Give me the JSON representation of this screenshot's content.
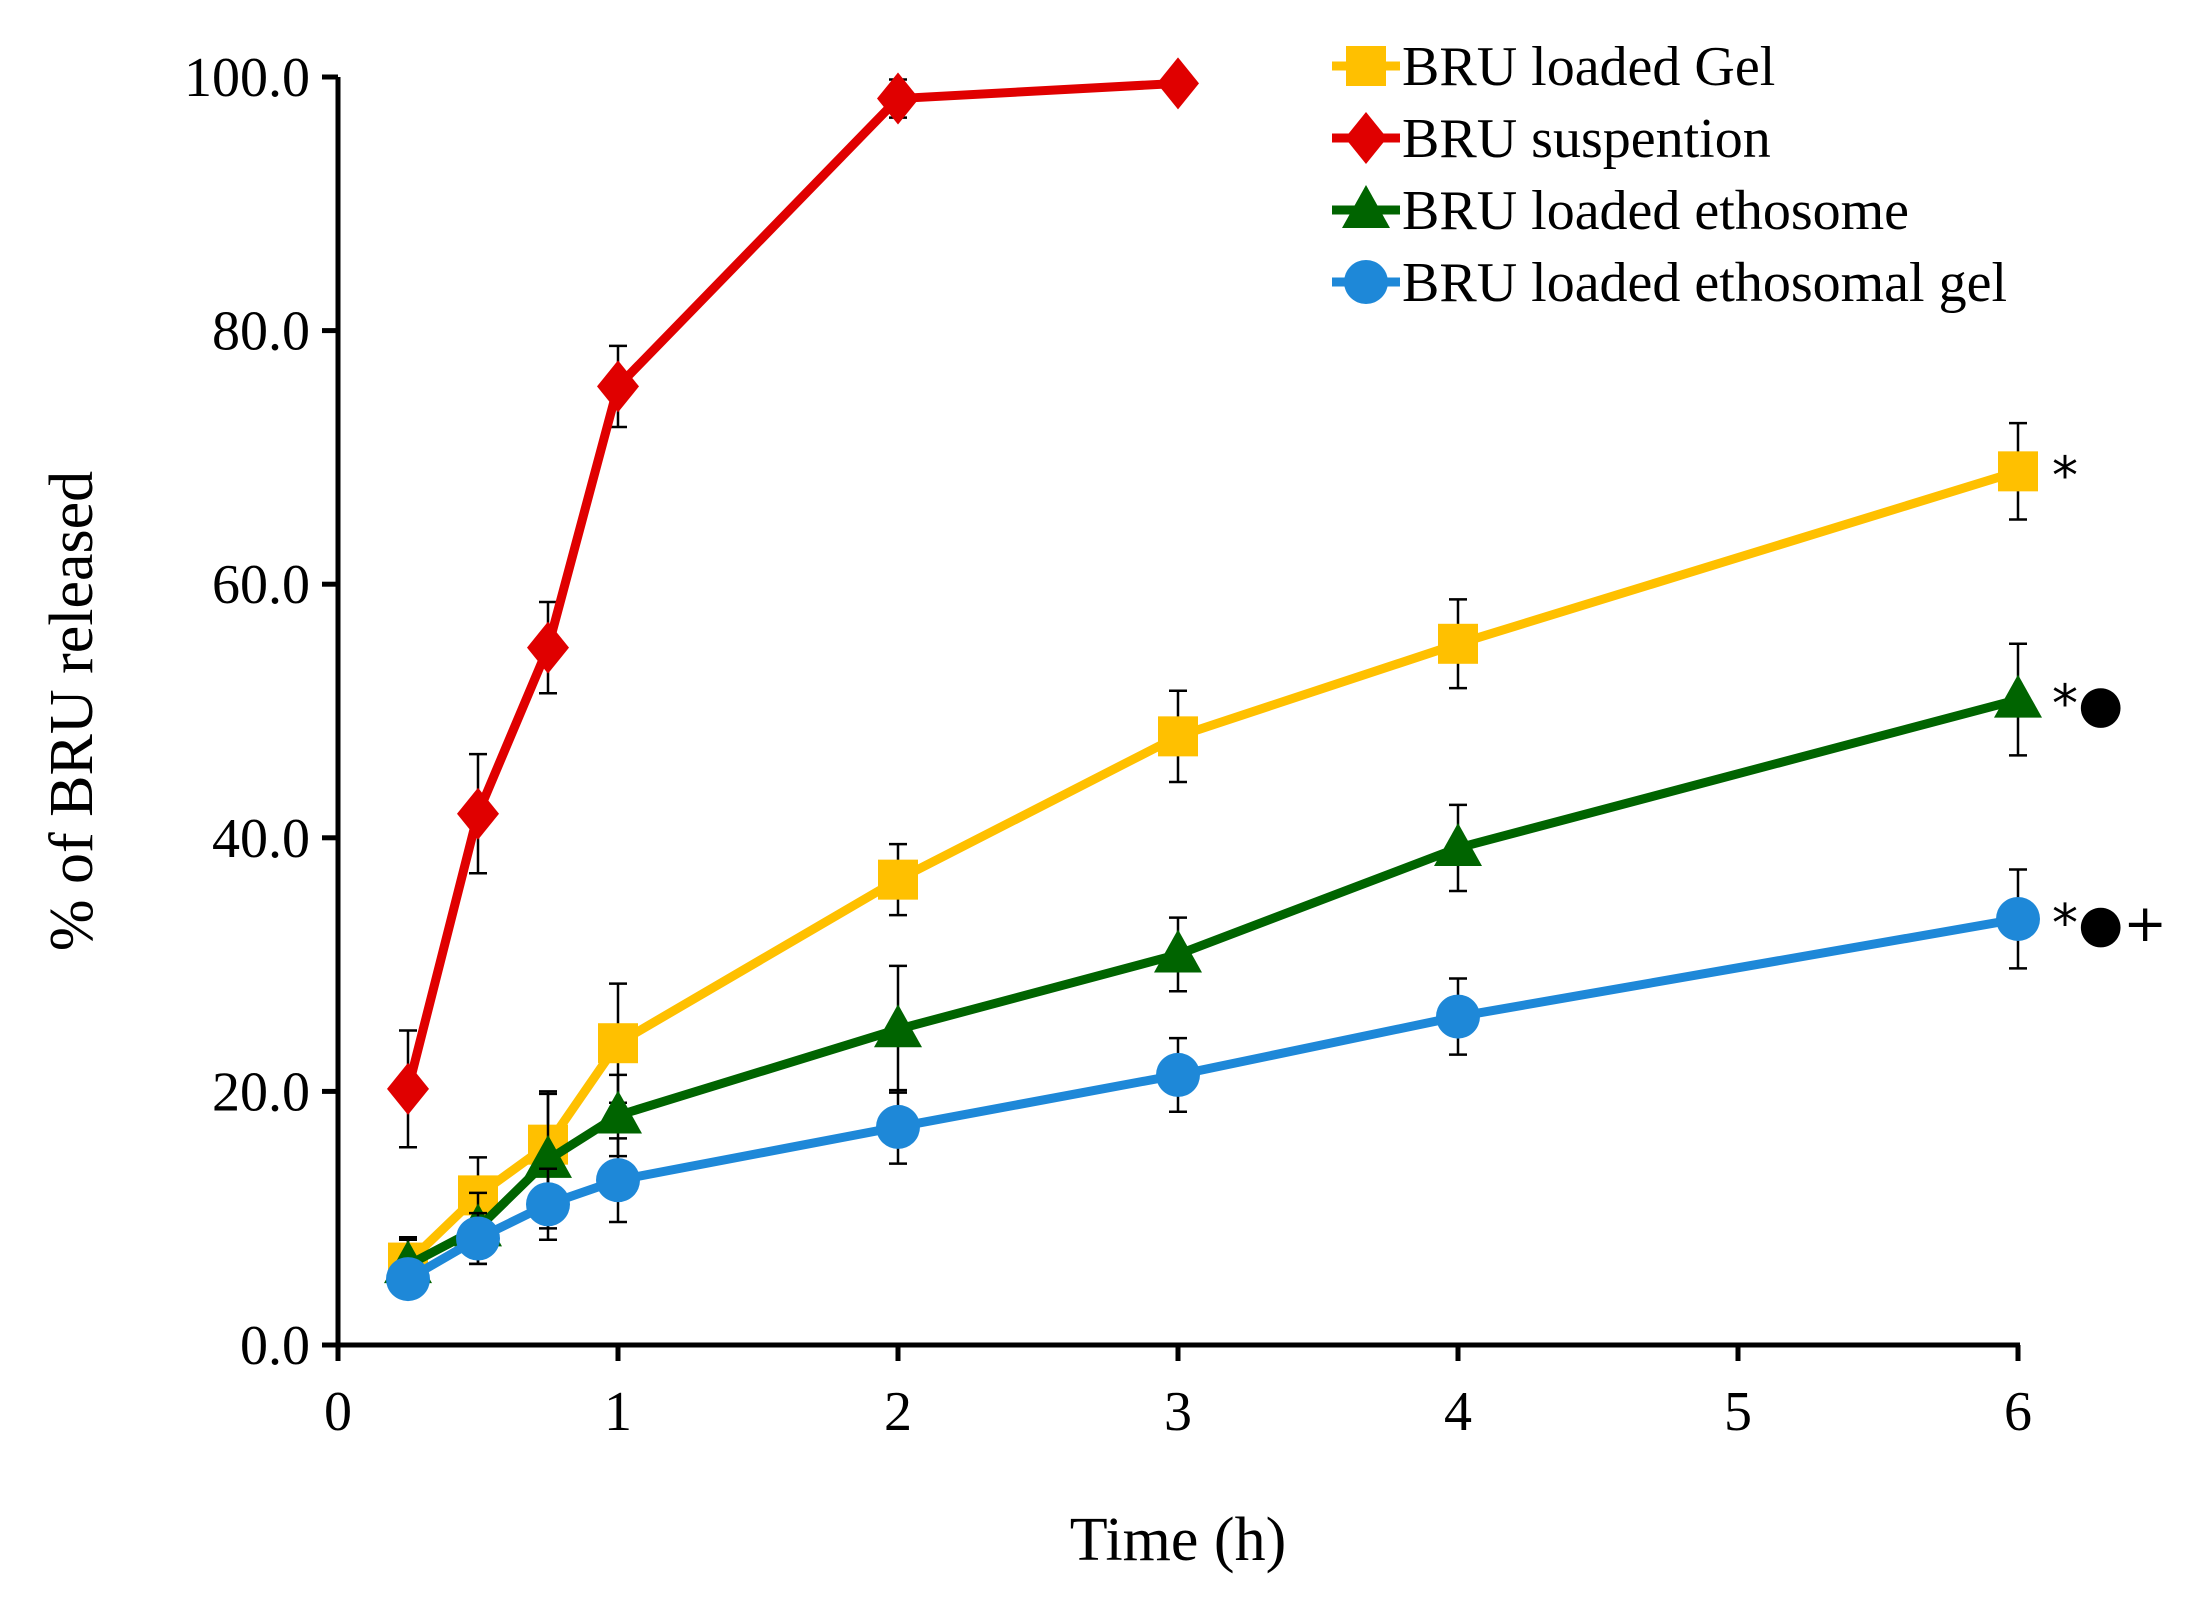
{
  "chart_data": {
    "type": "line",
    "title": "",
    "xlabel": "Time (h)",
    "ylabel": "% of BRU released",
    "xlim": [
      0,
      6
    ],
    "ylim": [
      0,
      100
    ],
    "x_ticks": [
      0,
      1,
      2,
      3,
      4,
      5,
      6
    ],
    "x_tick_labels": [
      "0",
      "1",
      "2",
      "3",
      "4",
      "5",
      "6"
    ],
    "y_ticks": [
      0,
      20,
      40,
      60,
      80,
      100
    ],
    "y_tick_labels": [
      "0.0",
      "20.0",
      "40.0",
      "60.0",
      "80.0",
      "100.0"
    ],
    "grid": false,
    "legend_position": "top-right",
    "series": [
      {
        "name": "BRU loaded Gel",
        "color": "#FFC000",
        "marker": "square",
        "x": [
          0.25,
          0.5,
          0.75,
          1,
          2,
          3,
          4,
          6
        ],
        "values": [
          6.5,
          11.8,
          15.8,
          23.8,
          36.7,
          48.0,
          55.3,
          68.9
        ],
        "errors": [
          2.0,
          3.0,
          4.0,
          4.7,
          2.8,
          3.6,
          3.5,
          3.8
        ],
        "annotation": "*"
      },
      {
        "name": "BRU suspention",
        "color": "#E00000",
        "marker": "diamond",
        "x": [
          0.25,
          0.5,
          1,
          0.75,
          2,
          3
        ],
        "values": [
          20.2,
          41.9,
          75.6,
          55.0,
          98.3,
          99.5
        ],
        "errors": [
          4.6,
          4.7,
          3.2,
          3.6,
          1.5,
          0.6
        ],
        "annotation": ""
      },
      {
        "name": "BRU loaded  ethosome",
        "color": "#006400",
        "marker": "triangle",
        "x": [
          0.25,
          0.5,
          0.75,
          1,
          2,
          3,
          4,
          6
        ],
        "values": [
          6.3,
          9.2,
          14.6,
          18.1,
          24.9,
          30.8,
          39.2,
          50.9
        ],
        "errors": [
          2.0,
          2.8,
          5.4,
          3.2,
          5.0,
          2.9,
          3.4,
          4.4
        ],
        "annotation": "*●"
      },
      {
        "name": "BRU loaded  ethosomal gel",
        "color": "#1E88D8",
        "marker": "circle",
        "x": [
          0.25,
          0.5,
          0.75,
          1,
          2,
          3,
          4,
          6
        ],
        "values": [
          5.2,
          8.4,
          11.1,
          13.0,
          17.2,
          21.3,
          25.9,
          33.6
        ],
        "errors": [
          1.2,
          2.0,
          2.8,
          3.3,
          2.9,
          2.9,
          3.0,
          3.9
        ],
        "annotation": "*●+"
      }
    ]
  }
}
